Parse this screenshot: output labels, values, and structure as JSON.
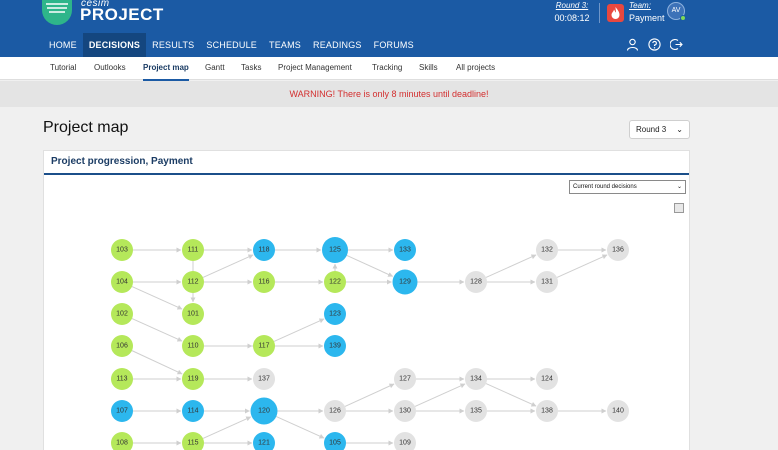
{
  "brand": {
    "small": "cesim",
    "big": "PROJECT"
  },
  "header": {
    "round_label": "Round 3:",
    "round_time": "00:08:12",
    "team_label": "Team:",
    "team_name": "Payment",
    "avatar_initials": "AV"
  },
  "main_nav": [
    {
      "label": "HOME",
      "active": false
    },
    {
      "label": "DECISIONS",
      "active": true
    },
    {
      "label": "RESULTS",
      "active": false
    },
    {
      "label": "SCHEDULE",
      "active": false
    },
    {
      "label": "TEAMS",
      "active": false
    },
    {
      "label": "READINGS",
      "active": false
    },
    {
      "label": "FORUMS",
      "active": false
    }
  ],
  "nav_icons": [
    "user-icon",
    "help-icon",
    "logout-icon"
  ],
  "sub_nav": [
    {
      "label": "Tutorial",
      "active": false
    },
    {
      "label": "Outlooks",
      "active": false
    },
    {
      "label": "Project map",
      "active": true
    },
    {
      "label": "Gantt",
      "active": false
    },
    {
      "label": "Tasks",
      "active": false
    },
    {
      "label": "Project Management",
      "active": false
    },
    {
      "label": "Tracking",
      "active": false
    },
    {
      "label": "Skills",
      "active": false
    },
    {
      "label": "All projects",
      "active": false
    }
  ],
  "warning": "WARNING! There is only 8 minutes until deadline!",
  "page_title": "Project map",
  "round_select": {
    "value": "Round 3"
  },
  "card": {
    "title": "Project progression, Payment",
    "decisions_select": "Current round decisions"
  },
  "colors": {
    "header_bg": "#1b5aa4",
    "nav_active": "#14467f",
    "warning_text": "#d32f2f",
    "node_done": "#b5e85a",
    "node_current": "#2cb7ee",
    "node_future": "#e2e2e2"
  },
  "project_map": {
    "nodes": [
      {
        "id": "103",
        "status": "done"
      },
      {
        "id": "111",
        "status": "done"
      },
      {
        "id": "118",
        "status": "current"
      },
      {
        "id": "125",
        "status": "current"
      },
      {
        "id": "133",
        "status": "current"
      },
      {
        "id": "132",
        "status": "future"
      },
      {
        "id": "136",
        "status": "future"
      },
      {
        "id": "104",
        "status": "done"
      },
      {
        "id": "112",
        "status": "done"
      },
      {
        "id": "116",
        "status": "done"
      },
      {
        "id": "122",
        "status": "done"
      },
      {
        "id": "129",
        "status": "current"
      },
      {
        "id": "128",
        "status": "future"
      },
      {
        "id": "131",
        "status": "future"
      },
      {
        "id": "102",
        "status": "done"
      },
      {
        "id": "101",
        "status": "done"
      },
      {
        "id": "123",
        "status": "current"
      },
      {
        "id": "106",
        "status": "done"
      },
      {
        "id": "110",
        "status": "done"
      },
      {
        "id": "117",
        "status": "done"
      },
      {
        "id": "139",
        "status": "current"
      },
      {
        "id": "113",
        "status": "done"
      },
      {
        "id": "119",
        "status": "done"
      },
      {
        "id": "137",
        "status": "future"
      },
      {
        "id": "127",
        "status": "future"
      },
      {
        "id": "134",
        "status": "future"
      },
      {
        "id": "124",
        "status": "future"
      },
      {
        "id": "107",
        "status": "current"
      },
      {
        "id": "114",
        "status": "current"
      },
      {
        "id": "120",
        "status": "current"
      },
      {
        "id": "126",
        "status": "future"
      },
      {
        "id": "130",
        "status": "future"
      },
      {
        "id": "135",
        "status": "future"
      },
      {
        "id": "138",
        "status": "future"
      },
      {
        "id": "140",
        "status": "future"
      },
      {
        "id": "108",
        "status": "done"
      },
      {
        "id": "115",
        "status": "done"
      },
      {
        "id": "121",
        "status": "current"
      },
      {
        "id": "105",
        "status": "current"
      },
      {
        "id": "109",
        "status": "future"
      }
    ],
    "edges": [
      [
        "103",
        "111"
      ],
      [
        "111",
        "118"
      ],
      [
        "118",
        "125"
      ],
      [
        "125",
        "133"
      ],
      [
        "125",
        "129"
      ],
      [
        "104",
        "112"
      ],
      [
        "112",
        "118"
      ],
      [
        "112",
        "116"
      ],
      [
        "116",
        "122"
      ],
      [
        "122",
        "125"
      ],
      [
        "122",
        "129"
      ],
      [
        "129",
        "128"
      ],
      [
        "128",
        "132"
      ],
      [
        "128",
        "131"
      ],
      [
        "132",
        "136"
      ],
      [
        "131",
        "136"
      ],
      [
        "104",
        "101"
      ],
      [
        "111",
        "101"
      ],
      [
        "102",
        "110"
      ],
      [
        "110",
        "117"
      ],
      [
        "117",
        "123"
      ],
      [
        "106",
        "119"
      ],
      [
        "110",
        "139"
      ],
      [
        "113",
        "119"
      ],
      [
        "119",
        "137"
      ],
      [
        "107",
        "114"
      ],
      [
        "114",
        "120"
      ],
      [
        "120",
        "126"
      ],
      [
        "126",
        "127"
      ],
      [
        "126",
        "130"
      ],
      [
        "127",
        "134"
      ],
      [
        "130",
        "134"
      ],
      [
        "130",
        "135"
      ],
      [
        "134",
        "124"
      ],
      [
        "134",
        "138"
      ],
      [
        "135",
        "138"
      ],
      [
        "138",
        "140"
      ],
      [
        "108",
        "115"
      ],
      [
        "115",
        "121"
      ],
      [
        "115",
        "120"
      ],
      [
        "120",
        "105"
      ],
      [
        "105",
        "109"
      ]
    ]
  }
}
